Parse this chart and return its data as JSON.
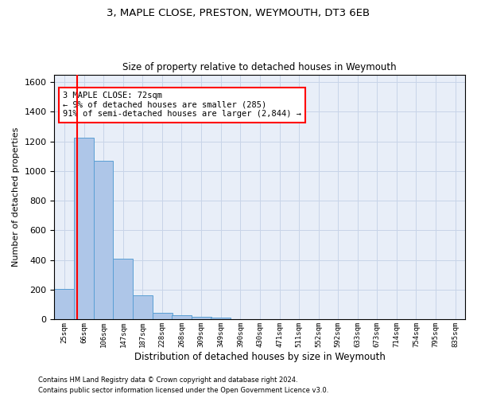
{
  "title1": "3, MAPLE CLOSE, PRESTON, WEYMOUTH, DT3 6EB",
  "title2": "Size of property relative to detached houses in Weymouth",
  "xlabel": "Distribution of detached houses by size in Weymouth",
  "ylabel": "Number of detached properties",
  "bin_labels": [
    "25sqm",
    "66sqm",
    "106sqm",
    "147sqm",
    "187sqm",
    "228sqm",
    "268sqm",
    "309sqm",
    "349sqm",
    "390sqm",
    "430sqm",
    "471sqm",
    "511sqm",
    "552sqm",
    "592sqm",
    "633sqm",
    "673sqm",
    "714sqm",
    "754sqm",
    "795sqm",
    "835sqm"
  ],
  "bar_values": [
    205,
    1225,
    1070,
    410,
    163,
    45,
    28,
    18,
    13,
    0,
    0,
    0,
    0,
    0,
    0,
    0,
    0,
    0,
    0,
    0,
    0
  ],
  "bar_color": "#aec6e8",
  "bar_edge_color": "#5a9fd4",
  "grid_color": "#c8d4e8",
  "background_color": "#e8eef8",
  "annotation_line1": "3 MAPLE CLOSE: 72sqm",
  "annotation_line2": "← 9% of detached houses are smaller (285)",
  "annotation_line3": "91% of semi-detached houses are larger (2,844) →",
  "annotation_box_color": "white",
  "annotation_border_color": "red",
  "property_line_x": 72,
  "bin_edges": [
    25,
    66,
    106,
    147,
    187,
    228,
    268,
    309,
    349,
    390,
    430,
    471,
    511,
    552,
    592,
    633,
    673,
    714,
    754,
    795,
    835
  ],
  "ylim": [
    0,
    1650
  ],
  "yticks": [
    0,
    200,
    400,
    600,
    800,
    1000,
    1200,
    1400,
    1600
  ],
  "footer1": "Contains HM Land Registry data © Crown copyright and database right 2024.",
  "footer2": "Contains public sector information licensed under the Open Government Licence v3.0."
}
